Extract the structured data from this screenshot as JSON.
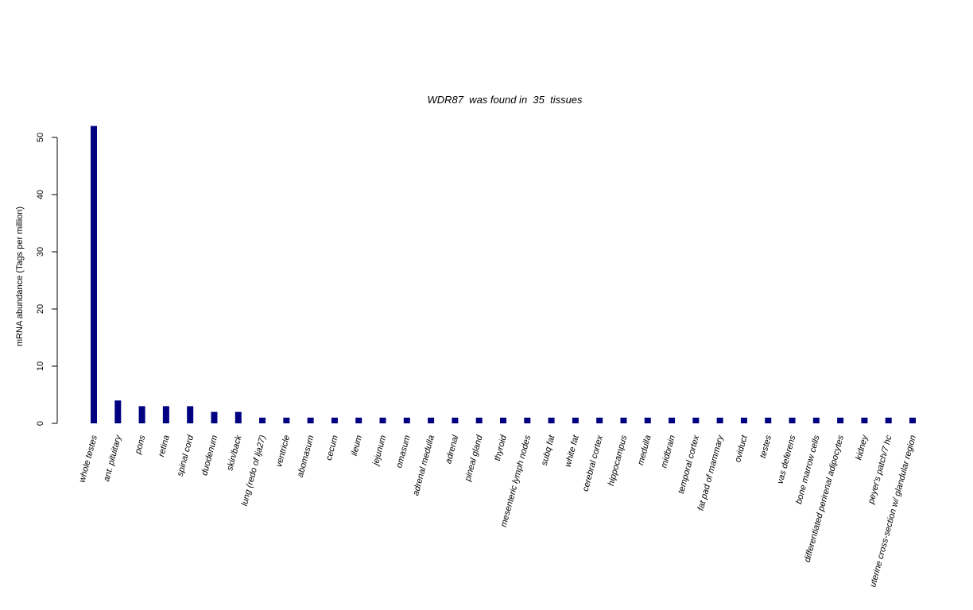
{
  "chart_data": {
    "type": "bar",
    "title": "WDR87  was found in  35  tissues",
    "y_label": "mRNA abundance (Tags per million)",
    "categories": [
      "whole testes",
      "ant. pituitary",
      "pons",
      "retina",
      "spinal cord",
      "duodenum",
      "skin/back",
      "lung (redo of lja27)",
      "ventricle",
      "abomasum",
      "cecum",
      "ileum",
      "jejunum",
      "omasum",
      "adrenal medulla",
      "adrenal",
      "pineal gland",
      "thyroid",
      "mesenteric lymph nodes",
      "subq fat",
      "white fat",
      "cerebral cortex",
      "hippocampus",
      "medulla",
      "midbrain",
      "temporal cortex",
      "fat pad of mammary",
      "oviduct",
      "testes",
      "vas deferens",
      "bone marrow cells",
      "differentiated perirenal adipocytes",
      "kidney",
      "peyer's patch/7 hc",
      "uterine cross-section w/ glandular region"
    ],
    "values": [
      52,
      4,
      3,
      3,
      3,
      2,
      2,
      1,
      1,
      1,
      1,
      1,
      1,
      1,
      1,
      1,
      1,
      1,
      1,
      1,
      1,
      1,
      1,
      1,
      1,
      1,
      1,
      1,
      1,
      1,
      1,
      1,
      1,
      1,
      1
    ],
    "color": "#000080",
    "ylim": [
      0,
      52
    ],
    "yticks": [
      0,
      10,
      20,
      30,
      40,
      50
    ],
    "grid": false
  }
}
